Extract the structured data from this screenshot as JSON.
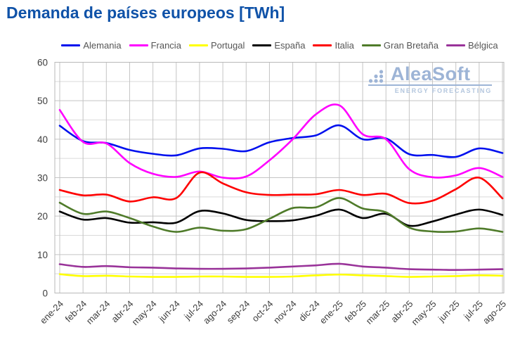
{
  "title": "Demanda de países europeos [TWh]",
  "watermark": {
    "brand": "AleaSoft",
    "tagline": "ENERGY FORECASTING"
  },
  "colors": {
    "title_text": "#0f52a8",
    "axis_text": "#3d3d3d",
    "legend_text": "#555555",
    "grid_major": "#c4c4c4",
    "grid_minor": "#dadada",
    "plot_border": "#b8b8b8",
    "watermark": "#9db4d6"
  },
  "chart_data": {
    "type": "line",
    "title": "Demanda de países europeos [TWh]",
    "xlabel": "",
    "ylabel": "",
    "ylim": [
      0,
      60
    ],
    "y_tick_step": 10,
    "y_minor_step": 5,
    "grid": true,
    "legend_position": "top",
    "categories": [
      "ene-24",
      "feb-24",
      "mar-24",
      "abr-24",
      "may-24",
      "jun-24",
      "jul-24",
      "ago-24",
      "sep-24",
      "oct-24",
      "nov-24",
      "dic-24",
      "ene-25",
      "feb-25",
      "mar-25",
      "abr-25",
      "may-25",
      "jun-25",
      "jul-25",
      "ago-25"
    ],
    "series": [
      {
        "name": "Alemania",
        "color": "#0010ee",
        "values": [
          43.5,
          39.5,
          39.0,
          37.2,
          36.2,
          35.8,
          37.6,
          37.5,
          36.9,
          39.2,
          40.3,
          41.0,
          43.6,
          40.0,
          40.2,
          36.1,
          35.9,
          35.4,
          37.6,
          36.4
        ]
      },
      {
        "name": "Francia",
        "color": "#ff00ff",
        "values": [
          47.6,
          39.3,
          38.9,
          33.8,
          31.0,
          30.2,
          31.6,
          30.0,
          30.3,
          34.5,
          40.0,
          46.5,
          48.8,
          41.3,
          40.0,
          32.2,
          30.1,
          30.6,
          32.5,
          30.2
        ]
      },
      {
        "name": "Portugal",
        "color": "#ffff00",
        "values": [
          4.9,
          4.4,
          4.5,
          4.3,
          4.2,
          4.2,
          4.3,
          4.3,
          4.2,
          4.2,
          4.3,
          4.6,
          4.8,
          4.6,
          4.4,
          4.2,
          4.3,
          4.4,
          4.6,
          4.5
        ]
      },
      {
        "name": "España",
        "color": "#000000",
        "values": [
          21.2,
          19.1,
          19.5,
          18.3,
          18.4,
          18.3,
          21.3,
          20.7,
          19.0,
          18.7,
          18.9,
          20.1,
          21.7,
          19.5,
          20.6,
          17.5,
          18.6,
          20.4,
          21.7,
          20.3
        ]
      },
      {
        "name": "Italia",
        "color": "#fe0000",
        "values": [
          26.8,
          25.4,
          25.6,
          23.8,
          24.9,
          24.7,
          31.3,
          28.5,
          26.2,
          25.5,
          25.6,
          25.7,
          26.8,
          25.5,
          25.8,
          23.4,
          24.0,
          27.0,
          30.0,
          24.6
        ]
      },
      {
        "name": "Gran Bretaña",
        "color": "#4f7b2a",
        "values": [
          23.5,
          20.6,
          21.2,
          19.5,
          17.3,
          15.9,
          17.0,
          16.2,
          16.6,
          19.3,
          22.1,
          22.3,
          24.7,
          22.0,
          21.0,
          17.0,
          16.0,
          16.0,
          16.8,
          15.9
        ]
      },
      {
        "name": "Bélgica",
        "color": "#993399",
        "values": [
          7.5,
          6.8,
          7.0,
          6.7,
          6.6,
          6.4,
          6.3,
          6.3,
          6.4,
          6.6,
          6.9,
          7.2,
          7.6,
          6.9,
          6.6,
          6.2,
          6.1,
          6.0,
          6.1,
          6.2
        ]
      }
    ]
  }
}
